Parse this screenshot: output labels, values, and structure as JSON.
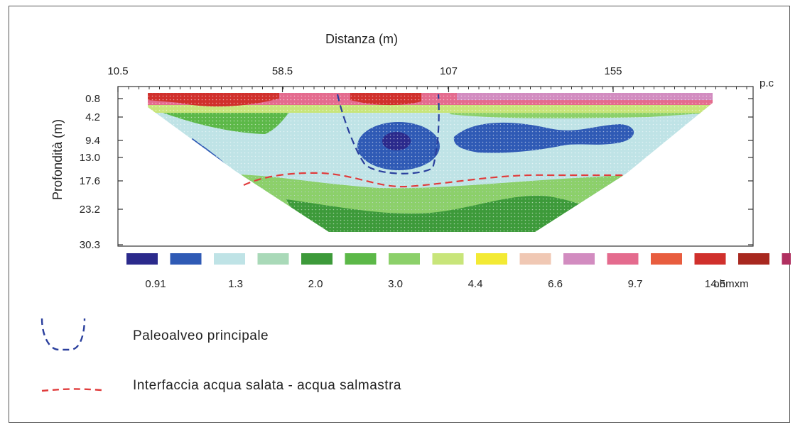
{
  "chart_data": {
    "type": "heatmap",
    "title": "",
    "xlabel": "Distanza (m)",
    "ylabel": "Profondità (m)",
    "x_ticks": [
      10.5,
      58.5,
      107,
      155
    ],
    "x_range": [
      10.5,
      190
    ],
    "y_ticks": [
      0.8,
      4.2,
      9.4,
      13.0,
      17.6,
      23.2,
      30.3
    ],
    "surface_label": "p.c",
    "colorbar": {
      "unit": "ohmxm",
      "colors": [
        "#2b2a8c",
        "#2f5ab5",
        "#bfe3e6",
        "#a9d9b8",
        "#3d9a3a",
        "#5cb848",
        "#8cd06a",
        "#c8e57a",
        "#f3ea34",
        "#f0c8b4",
        "#d28cc0",
        "#e46b8e",
        "#e85d3f",
        "#d0302c",
        "#a8281f",
        "#b03060",
        "#a0389c"
      ],
      "labels": [
        "0.91",
        "1.3",
        "2.0",
        "3.0",
        "4.4",
        "6.6",
        "9.7",
        "14.5"
      ]
    }
  },
  "legend": {
    "items": [
      {
        "symbol": "paleoalveo-icon",
        "color": "#2a3f9d",
        "label": "Paleoalveo principale"
      },
      {
        "symbol": "interface-line-icon",
        "color": "#e03c3c",
        "label": "Interfaccia acqua salata - acqua salmastra"
      }
    ]
  }
}
